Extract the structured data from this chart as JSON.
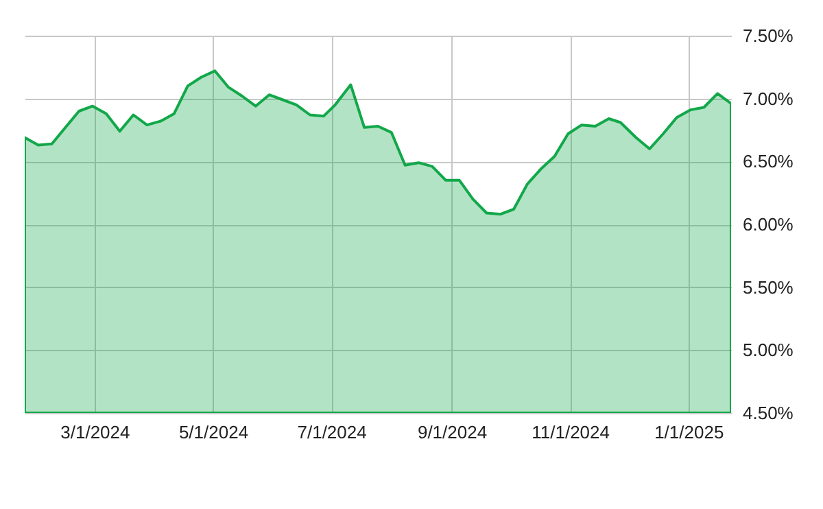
{
  "chart_data": {
    "type": "area",
    "x": [
      "2024-01-25",
      "2024-02-01",
      "2024-02-08",
      "2024-02-15",
      "2024-02-22",
      "2024-02-29",
      "2024-03-07",
      "2024-03-14",
      "2024-03-21",
      "2024-03-28",
      "2024-04-04",
      "2024-04-11",
      "2024-04-18",
      "2024-04-25",
      "2024-05-02",
      "2024-05-09",
      "2024-05-16",
      "2024-05-23",
      "2024-05-30",
      "2024-06-06",
      "2024-06-13",
      "2024-06-20",
      "2024-06-27",
      "2024-07-03",
      "2024-07-11",
      "2024-07-18",
      "2024-07-25",
      "2024-08-01",
      "2024-08-08",
      "2024-08-15",
      "2024-08-22",
      "2024-08-29",
      "2024-09-05",
      "2024-09-12",
      "2024-09-19",
      "2024-09-26",
      "2024-10-03",
      "2024-10-10",
      "2024-10-17",
      "2024-10-24",
      "2024-10-31",
      "2024-11-07",
      "2024-11-14",
      "2024-11-21",
      "2024-11-27",
      "2024-12-05",
      "2024-12-12",
      "2024-12-19",
      "2024-12-26",
      "2025-01-02",
      "2025-01-09",
      "2025-01-16",
      "2025-01-23"
    ],
    "series": [
      {
        "color": "#12a84a",
        "values": [
          6.69,
          6.63,
          6.64,
          6.77,
          6.9,
          6.94,
          6.88,
          6.74,
          6.87,
          6.79,
          6.82,
          6.88,
          7.1,
          7.17,
          7.22,
          7.09,
          7.02,
          6.94,
          7.03,
          6.99,
          6.95,
          6.87,
          6.86,
          6.95,
          7.11,
          6.77,
          6.78,
          6.73,
          6.47,
          6.49,
          6.46,
          6.35,
          6.35,
          6.2,
          6.09,
          6.08,
          6.12,
          6.32,
          6.44,
          6.54,
          6.72,
          6.79,
          6.78,
          6.84,
          6.81,
          6.69,
          6.6,
          6.72,
          6.85,
          6.91,
          6.93,
          7.04,
          6.96
        ]
      }
    ],
    "xlim": [
      "2024-01-25",
      "2025-01-23"
    ],
    "xticks": [
      {
        "value": "2024-03-01",
        "label": "3/1/2024"
      },
      {
        "value": "2024-05-01",
        "label": "5/1/2024"
      },
      {
        "value": "2024-07-01",
        "label": "7/1/2024"
      },
      {
        "value": "2024-09-01",
        "label": "9/1/2024"
      },
      {
        "value": "2024-11-01",
        "label": "11/1/2024"
      },
      {
        "value": "2025-01-01",
        "label": "1/1/2025"
      }
    ],
    "ylim": [
      4.5,
      7.5
    ],
    "yticks": [
      {
        "value": 4.5,
        "label": "4.50%"
      },
      {
        "value": 5.0,
        "label": "5.00%"
      },
      {
        "value": 5.5,
        "label": "5.50%"
      },
      {
        "value": 6.0,
        "label": "6.00%"
      },
      {
        "value": 6.5,
        "label": "6.50%"
      },
      {
        "value": 7.0,
        "label": "7.00%"
      },
      {
        "value": 7.5,
        "label": "7.50%"
      }
    ],
    "grid": true
  }
}
